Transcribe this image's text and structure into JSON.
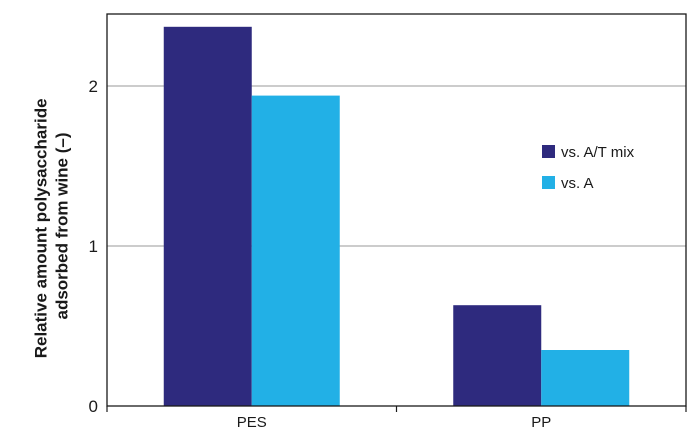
{
  "chart_data": {
    "type": "bar",
    "categories": [
      "PES",
      "PP"
    ],
    "series": [
      {
        "name": "vs. A/T mix",
        "values": [
          2.37,
          0.63
        ],
        "color": "#2e2a7e"
      },
      {
        "name": "vs. A",
        "values": [
          1.94,
          0.35
        ],
        "color": "#22b0e6"
      }
    ],
    "title": "",
    "xlabel": "",
    "ylabel": [
      "Relative amount polysaccharide",
      "adsorbed from wine (–)"
    ],
    "ylim": [
      0,
      2.45
    ],
    "yticks": [
      0,
      1,
      2
    ],
    "grid": true,
    "legend_position": "right"
  }
}
